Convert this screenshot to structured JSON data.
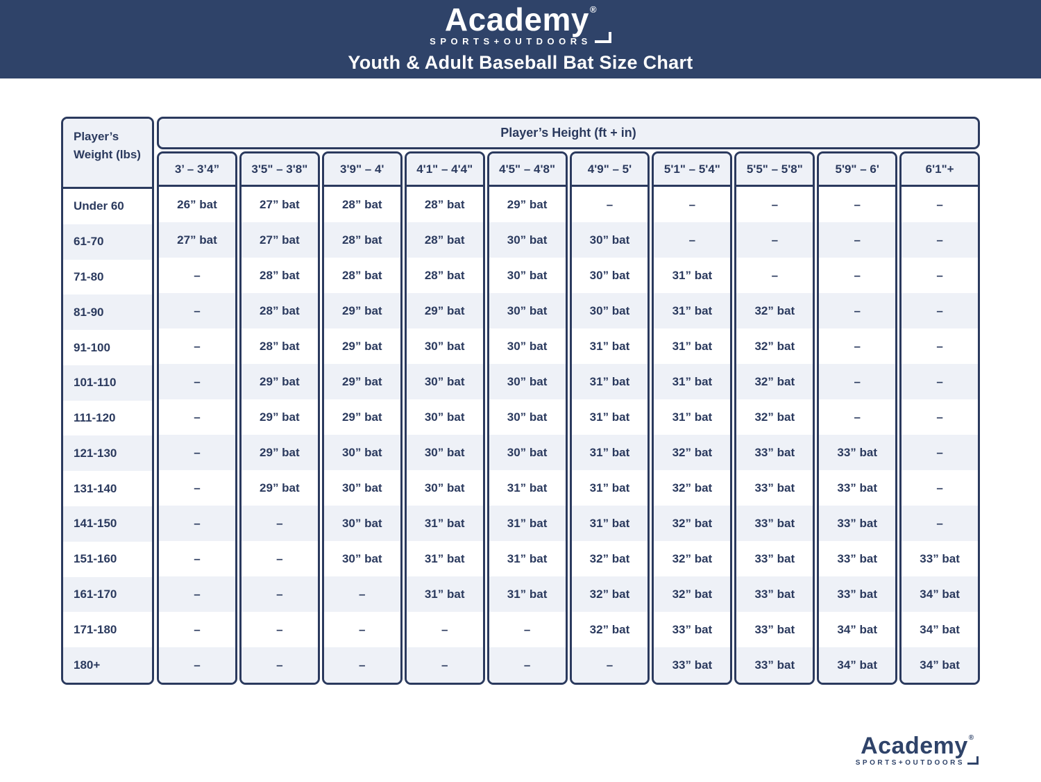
{
  "banner": {
    "logo": {
      "brand": "Academy",
      "registered": "®",
      "tagline": "SPORTS+OUTDOORS"
    },
    "title": "Youth & Adult Baseball Bat Size Chart"
  },
  "chart_data": {
    "type": "table",
    "title": "Youth & Adult Baseball Bat Size Chart",
    "row_header": "Player’s Weight (lbs)",
    "col_group_header": "Player’s Height (ft + in)",
    "columns": [
      "3’ – 3’4”",
      "3'5\" – 3'8\"",
      "3'9\" – 4'",
      "4'1\" – 4'4\"",
      "4'5\" – 4'8\"",
      "4'9\" – 5'",
      "5'1\" – 5'4\"",
      "5'5\" – 5'8\"",
      "5'9\" – 6'",
      "6'1\"+"
    ],
    "rows": [
      {
        "weight": "Under 60",
        "values": [
          "26” bat",
          "27” bat",
          "28” bat",
          "28” bat",
          "29” bat",
          "–",
          "–",
          "–",
          "–",
          "–"
        ]
      },
      {
        "weight": "61-70",
        "values": [
          "27” bat",
          "27” bat",
          "28” bat",
          "28” bat",
          "30” bat",
          "30” bat",
          "–",
          "–",
          "–",
          "–"
        ]
      },
      {
        "weight": "71-80",
        "values": [
          "–",
          "28” bat",
          "28” bat",
          "28” bat",
          "30” bat",
          "30” bat",
          "31” bat",
          "–",
          "–",
          "–"
        ]
      },
      {
        "weight": "81-90",
        "values": [
          "–",
          "28” bat",
          "29” bat",
          "29” bat",
          "30” bat",
          "30” bat",
          "31” bat",
          "32” bat",
          "–",
          "–"
        ]
      },
      {
        "weight": "91-100",
        "values": [
          "–",
          "28” bat",
          "29” bat",
          "30” bat",
          "30” bat",
          "31” bat",
          "31” bat",
          "32” bat",
          "–",
          "–"
        ]
      },
      {
        "weight": "101-110",
        "values": [
          "–",
          "29” bat",
          "29” bat",
          "30” bat",
          "30” bat",
          "31” bat",
          "31” bat",
          "32” bat",
          "–",
          "–"
        ]
      },
      {
        "weight": "111-120",
        "values": [
          "–",
          "29” bat",
          "29” bat",
          "30” bat",
          "30” bat",
          "31” bat",
          "31” bat",
          "32” bat",
          "–",
          "–"
        ]
      },
      {
        "weight": "121-130",
        "values": [
          "–",
          "29” bat",
          "30” bat",
          "30” bat",
          "30” bat",
          "31” bat",
          "32” bat",
          "33” bat",
          "33” bat",
          "–"
        ]
      },
      {
        "weight": "131-140",
        "values": [
          "–",
          "29” bat",
          "30” bat",
          "30” bat",
          "31” bat",
          "31” bat",
          "32” bat",
          "33” bat",
          "33” bat",
          "–"
        ]
      },
      {
        "weight": "141-150",
        "values": [
          "–",
          "–",
          "30” bat",
          "31” bat",
          "31” bat",
          "31” bat",
          "32” bat",
          "33” bat",
          "33” bat",
          "–"
        ]
      },
      {
        "weight": "151-160",
        "values": [
          "–",
          "–",
          "30” bat",
          "31” bat",
          "31” bat",
          "32” bat",
          "32” bat",
          "33” bat",
          "33” bat",
          "33” bat"
        ]
      },
      {
        "weight": "161-170",
        "values": [
          "–",
          "–",
          "–",
          "31” bat",
          "31” bat",
          "32” bat",
          "32” bat",
          "33” bat",
          "33” bat",
          "34” bat"
        ]
      },
      {
        "weight": "171-180",
        "values": [
          "–",
          "–",
          "–",
          "–",
          "–",
          "32” bat",
          "33” bat",
          "33” bat",
          "34” bat",
          "34” bat"
        ]
      },
      {
        "weight": "180+",
        "values": [
          "–",
          "–",
          "–",
          "–",
          "–",
          "–",
          "33” bat",
          "33” bat",
          "34” bat",
          "34” bat"
        ]
      }
    ]
  },
  "footer": {
    "logo": {
      "brand": "Academy",
      "registered": "®",
      "tagline": "SPORTS+OUTDOORS"
    }
  },
  "colors": {
    "banner_bg": "#2f4369",
    "navy": "#2b3a5e",
    "light_row": "#eef1f7",
    "white_row": "#ffffff"
  }
}
